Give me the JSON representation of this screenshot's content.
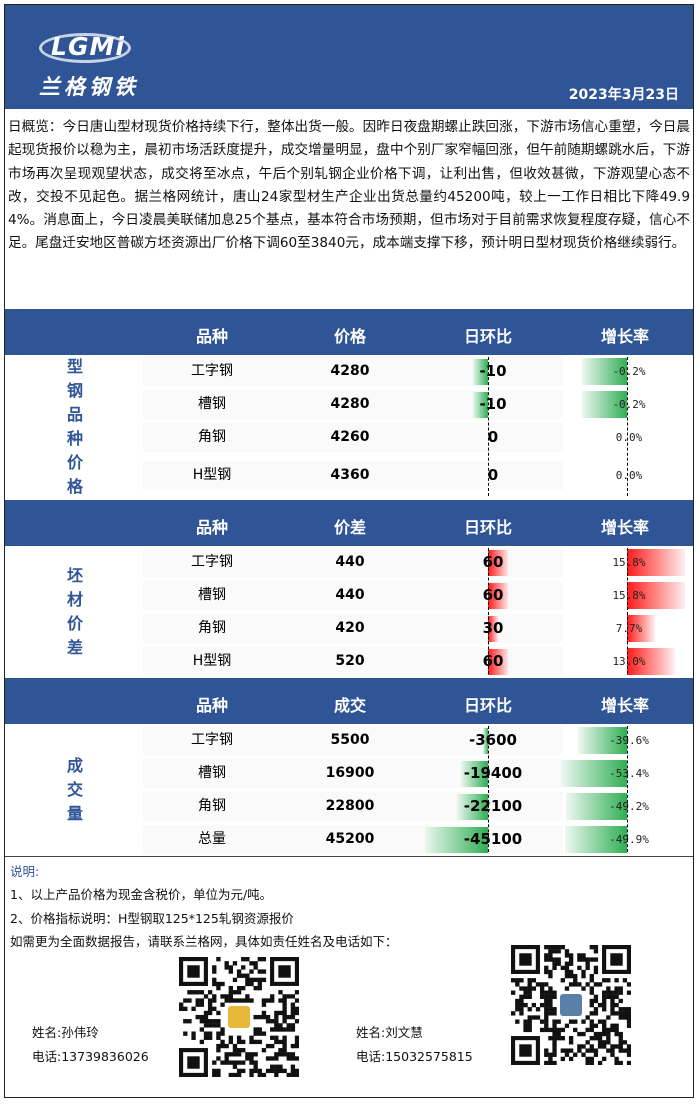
{
  "header": {
    "logo_text": "LGMi",
    "logo_cn": "兰格钢铁",
    "date": "2023年3月23日"
  },
  "overview": "日概览：今日唐山型材现货价格持续下行，整体出货一般。因昨日夜盘期螺止跌回涨，下游市场信心重塑，今日晨起现货报价以稳为主，晨初市场活跃度提升，成交增量明显，盘中个别厂家窄幅回涨，但午前随期螺跳水后，下游市场再次呈现观望状态，成交将至冰点，午后个别轧钢企业价格下调，让利出售，但收效甚微，下游观望心态不改，交投不见起色。据兰格网统计，唐山24家型材生产企业出货总量约45200吨，较上一工作日相比下降49.94%。消息面上，今日凌晨美联储加息25个基点，基本符合市场预期，但市场对于目前需求恢复程度存疑，信心不足。尾盘迁安地区普碳方坯资源出厂价格下调60至3840元，成本端支撑下移，预计明日型材现货价格继续弱行。",
  "colors": {
    "brand": "#2f5597",
    "up": "#ff1a1a",
    "down": "#2fae54"
  },
  "tables": [
    {
      "label": "型钢品种价格",
      "headers": [
        "品种",
        "价格",
        "日环比",
        "增长率"
      ],
      "rows": [
        {
          "name": "工字钢",
          "value": "4280",
          "change": -10,
          "change_text": "-10",
          "rate": -0.2,
          "rate_text": "-0.2%"
        },
        {
          "name": "槽钢",
          "value": "4280",
          "change": -10,
          "change_text": "-10",
          "rate": -0.2,
          "rate_text": "-0.2%"
        },
        {
          "name": "角钢",
          "value": "4260",
          "change": 0,
          "change_text": "0",
          "rate": 0.0,
          "rate_text": "0.0%"
        },
        {
          "name": "H型钢",
          "value": "4360",
          "change": 0,
          "change_text": "0",
          "rate": 0.0,
          "rate_text": "0.0%"
        }
      ]
    },
    {
      "label": "坯材价差",
      "headers": [
        "品种",
        "价差",
        "日环比",
        "增长率"
      ],
      "rows": [
        {
          "name": "工字钢",
          "value": "440",
          "change": 60,
          "change_text": "60",
          "rate": 15.8,
          "rate_text": "15.8%"
        },
        {
          "name": "槽钢",
          "value": "440",
          "change": 60,
          "change_text": "60",
          "rate": 15.8,
          "rate_text": "15.8%"
        },
        {
          "name": "角钢",
          "value": "420",
          "change": 30,
          "change_text": "30",
          "rate": 7.7,
          "rate_text": "7.7%"
        },
        {
          "name": "H型钢",
          "value": "520",
          "change": 60,
          "change_text": "60",
          "rate": 13.0,
          "rate_text": "13.0%"
        }
      ]
    },
    {
      "label": "成交量",
      "headers": [
        "品种",
        "成交",
        "日环比",
        "增长率"
      ],
      "rows": [
        {
          "name": "工字钢",
          "value": "5500",
          "change": -3600,
          "change_text": "-3600",
          "rate": -39.6,
          "rate_text": "-39.6%"
        },
        {
          "name": "槽钢",
          "value": "16900",
          "change": -19400,
          "change_text": "-19400",
          "rate": -53.4,
          "rate_text": "-53.4%"
        },
        {
          "name": "角钢",
          "value": "22800",
          "change": -22100,
          "change_text": "-22100",
          "rate": -49.2,
          "rate_text": "-49.2%"
        },
        {
          "name": "总量",
          "value": "45200",
          "change": -45100,
          "change_text": "-45100",
          "rate": -49.9,
          "rate_text": "-49.9%"
        }
      ]
    }
  ],
  "notes": {
    "title": "说明:",
    "line1": "1、以上产品价格为现金含税价，单位为元/吨。",
    "line2": "2、价格指标说明：H型钢取125*125轧钢资源报价",
    "line3": "如需更为全面数据报告，请联系兰格网，具体如责任姓名及电话如下："
  },
  "contacts": [
    {
      "name": "姓名:孙伟玲",
      "phone": "电话:13739836026"
    },
    {
      "name": "姓名:刘文慧",
      "phone": "电话:15032575815"
    }
  ]
}
